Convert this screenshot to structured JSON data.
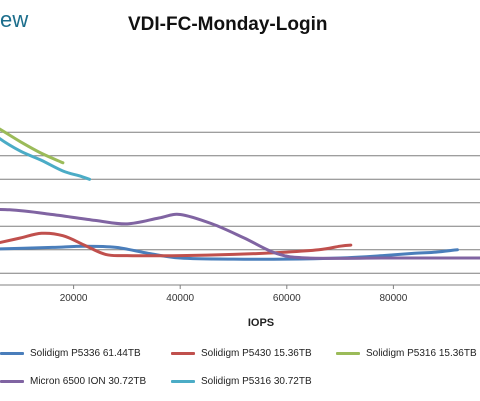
{
  "page": {
    "brand_text": "ew"
  },
  "chart_data": {
    "type": "line",
    "title": "VDI-FC-Monday-Login",
    "xlabel": "IOPS",
    "ylabel": "",
    "xlim": [
      0,
      100000
    ],
    "ylim": [
      0,
      2.0
    ],
    "x_ticks": [
      20000,
      40000,
      60000,
      80000
    ],
    "x_tick_labels": [
      "20000",
      "40000",
      "60000",
      "80000"
    ],
    "y_gridlines": [
      0.1,
      0.3,
      0.5,
      0.7,
      0.9,
      1.1,
      1.3
    ],
    "grid": true,
    "legend_position": "bottom",
    "series": [
      {
        "name": "Solidigm P5336 61.44TB",
        "color": "#4a7ebb",
        "points": [
          [
            0,
            0.3
          ],
          [
            8000,
            0.31
          ],
          [
            16000,
            0.32
          ],
          [
            22000,
            0.33
          ],
          [
            28000,
            0.32
          ],
          [
            34000,
            0.27
          ],
          [
            40000,
            0.23
          ],
          [
            50000,
            0.22
          ],
          [
            60000,
            0.22
          ],
          [
            70000,
            0.23
          ],
          [
            78000,
            0.25
          ],
          [
            84000,
            0.27
          ],
          [
            88000,
            0.28
          ],
          [
            92000,
            0.3
          ]
        ]
      },
      {
        "name": "Solidigm P5430 15.36TB",
        "color": "#c0504d",
        "points": [
          [
            0,
            0.3
          ],
          [
            6000,
            0.36
          ],
          [
            10000,
            0.4
          ],
          [
            14000,
            0.44
          ],
          [
            18000,
            0.42
          ],
          [
            22000,
            0.34
          ],
          [
            26000,
            0.26
          ],
          [
            30000,
            0.25
          ],
          [
            40000,
            0.25
          ],
          [
            50000,
            0.26
          ],
          [
            60000,
            0.28
          ],
          [
            66000,
            0.3
          ],
          [
            70000,
            0.33
          ],
          [
            72000,
            0.34
          ]
        ]
      },
      {
        "name": "Solidigm P5316 15.36TB",
        "color": "#9bbb59",
        "points": [
          [
            0,
            1.45
          ],
          [
            3000,
            1.4
          ],
          [
            6000,
            1.33
          ],
          [
            10000,
            1.22
          ],
          [
            14000,
            1.12
          ],
          [
            18000,
            1.04
          ]
        ]
      },
      {
        "name": "Micron 6500 ION 30.72TB",
        "color": "#8064a2",
        "points": [
          [
            0,
            0.64
          ],
          [
            8000,
            0.64
          ],
          [
            16000,
            0.6
          ],
          [
            24000,
            0.55
          ],
          [
            30000,
            0.52
          ],
          [
            36000,
            0.57
          ],
          [
            40000,
            0.6
          ],
          [
            46000,
            0.52
          ],
          [
            52000,
            0.4
          ],
          [
            58000,
            0.27
          ],
          [
            64000,
            0.23
          ],
          [
            80000,
            0.23
          ],
          [
            100000,
            0.23
          ]
        ]
      },
      {
        "name": "Solidigm P5316 30.72TB",
        "color": "#4bacc6",
        "points": [
          [
            0,
            1.46
          ],
          [
            3000,
            1.37
          ],
          [
            6000,
            1.25
          ],
          [
            10000,
            1.14
          ],
          [
            14000,
            1.06
          ],
          [
            18000,
            0.97
          ],
          [
            21000,
            0.93
          ],
          [
            23000,
            0.9
          ]
        ]
      }
    ]
  }
}
